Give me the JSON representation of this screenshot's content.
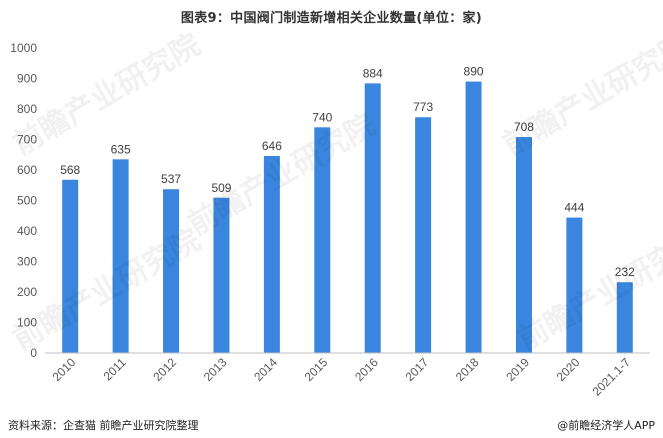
{
  "title": "图表9：中国阀门制造新增相关企业数量(单位：家)",
  "source": "资料来源：企查猫 前瞻产业研究院整理",
  "credit": "@前瞻经济学人APP",
  "watermark": "前瞻产业研究院",
  "colors": {
    "bar": "#3a86de",
    "axis": "#bfbfbf",
    "text": "#595959"
  },
  "chart_data": {
    "type": "bar",
    "categories": [
      "2010",
      "2011",
      "2012",
      "2013",
      "2014",
      "2015",
      "2016",
      "2017",
      "2018",
      "2019",
      "2020",
      "2021.1-7"
    ],
    "values": [
      568,
      635,
      537,
      509,
      646,
      740,
      884,
      773,
      890,
      708,
      444,
      232
    ],
    "ylim": [
      0,
      1000
    ],
    "yticks": [
      0,
      100,
      200,
      300,
      400,
      500,
      600,
      700,
      800,
      900,
      1000
    ],
    "grid": false,
    "legend": "none"
  }
}
